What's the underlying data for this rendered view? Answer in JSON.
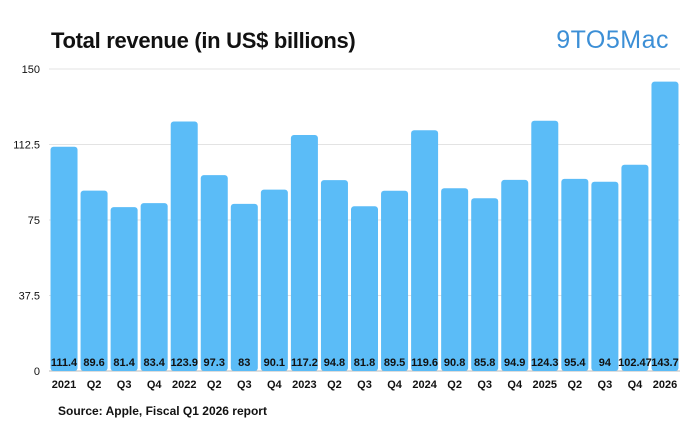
{
  "brand": "9TO5Mac",
  "source": "Source: Apple, Fiscal Q1 2026 report",
  "chart_data": {
    "type": "bar",
    "title": "Total revenue (in US$ billions)",
    "xlabel": "",
    "ylabel": "",
    "ylim": [
      0,
      150
    ],
    "yticks": [
      "0",
      "37.5",
      "75",
      "112.5",
      "150"
    ],
    "yticks_values": [
      0,
      37.5,
      75,
      112.5,
      150
    ],
    "grid": true,
    "bar_color": "#5bbcf7",
    "categories": [
      "2021",
      "Q2",
      "Q3",
      "Q4",
      "2022",
      "Q2",
      "Q3",
      "Q4",
      "2023",
      "Q2",
      "Q3",
      "Q4",
      "2024",
      "Q2",
      "Q3",
      "Q4",
      "2025",
      "Q2",
      "Q3",
      "Q4",
      "2026"
    ],
    "values": [
      111.4,
      89.6,
      81.4,
      83.4,
      123.9,
      97.3,
      83,
      90.1,
      117.2,
      94.8,
      81.8,
      89.5,
      119.6,
      90.8,
      85.8,
      94.9,
      124.3,
      95.4,
      94,
      102.47,
      143.7
    ],
    "value_labels": [
      "111.4",
      "89.6",
      "81.4",
      "83.4",
      "123.9",
      "97.3",
      "83",
      "90.1",
      "117.2",
      "94.8",
      "81.8",
      "89.5",
      "119.6",
      "90.8",
      "85.8",
      "94.9",
      "124.3",
      "95.4",
      "94",
      "102.47",
      "143.7"
    ]
  }
}
